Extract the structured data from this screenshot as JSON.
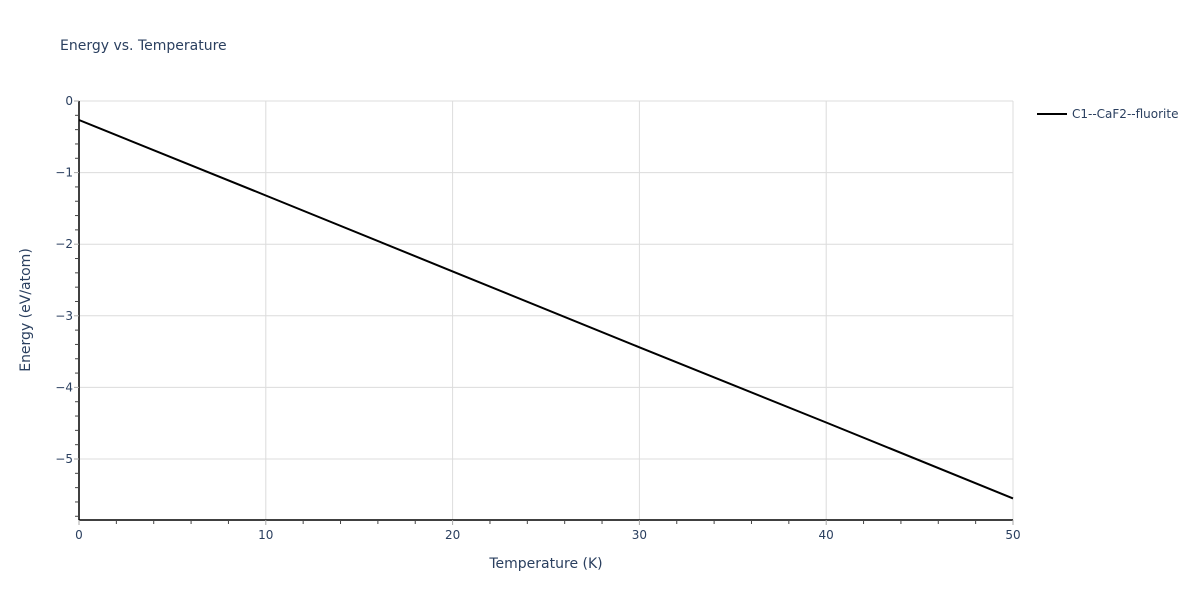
{
  "chart_data": {
    "type": "line",
    "title": "Energy vs. Temperature",
    "xlabel": "Temperature (K)",
    "ylabel": "Energy (eV/atom)",
    "xlim": [
      0,
      50
    ],
    "ylim": [
      -5.85,
      0
    ],
    "x_ticks": [
      0,
      10,
      20,
      30,
      40,
      50
    ],
    "x_tick_labels": [
      "0",
      "10",
      "20",
      "30",
      "40",
      "50"
    ],
    "y_ticks": [
      0,
      -1,
      -2,
      -3,
      -4,
      -5
    ],
    "y_tick_labels": [
      "0",
      "−1",
      "−2",
      "−3",
      "−4",
      "−5"
    ],
    "grid": true,
    "legend_position": "top-right-outside",
    "series": [
      {
        "name": "C1--CaF2--fluorite",
        "color": "#000000",
        "x": [
          0,
          10,
          20,
          30,
          40,
          50
        ],
        "values": [
          -0.265,
          -1.32,
          -2.38,
          -3.44,
          -4.49,
          -5.55
        ]
      }
    ]
  },
  "colors": {
    "text": "#2a3f5f",
    "grid": "#dcdcdc",
    "axis": "#000000",
    "line": "#000000"
  }
}
